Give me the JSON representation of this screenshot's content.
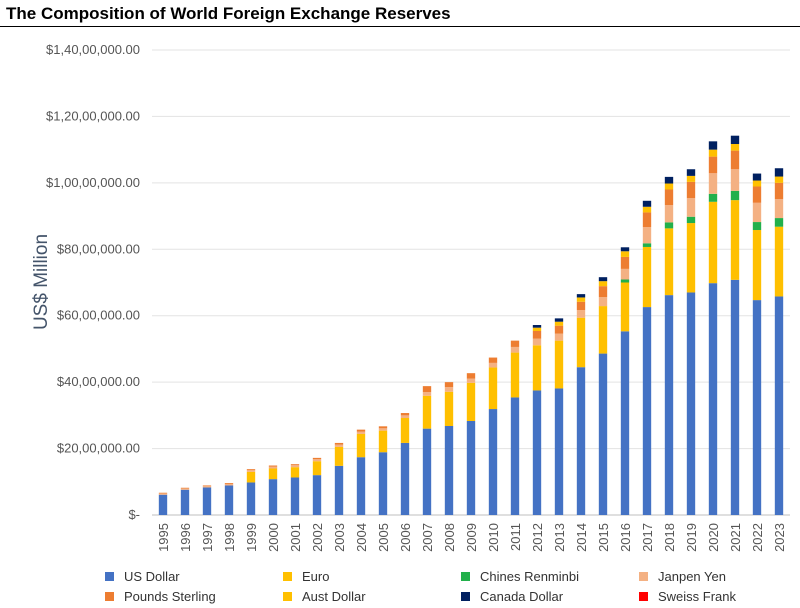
{
  "title": "The Composition of World Foreign Exchange Reserves",
  "chart_data": {
    "type": "bar",
    "stacked": true,
    "title": "The Composition of World Foreign Exchange Reserves",
    "xlabel": "",
    "ylabel": "US$ Million",
    "ylim": [
      0,
      14000000
    ],
    "ytick_values": [
      0,
      2000000,
      4000000,
      6000000,
      8000000,
      10000000,
      12000000,
      14000000
    ],
    "ytick_labels": [
      "$-",
      "$20,00,000.00",
      "$40,00,000.00",
      "$60,00,000.00",
      "$80,00,000.00",
      "$1,00,00,000.00",
      "$1,20,00,000.00",
      "$1,40,00,000.00"
    ],
    "grid": true,
    "legend_position": "bottom",
    "categories": [
      "1995",
      "1996",
      "1997",
      "1998",
      "1999",
      "2000",
      "2001",
      "2002",
      "2003",
      "2004",
      "2005",
      "2006",
      "2007",
      "2008",
      "2009",
      "2010",
      "2011",
      "2012",
      "2013",
      "2014",
      "2015",
      "2016",
      "2017",
      "2018",
      "2019",
      "2020",
      "2021",
      "2022",
      "2023"
    ],
    "series": [
      {
        "name": "US Dollar",
        "color": "#4472C4",
        "values": [
          610000,
          760000,
          830000,
          890000,
          980000,
          1080000,
          1130000,
          1200000,
          1480000,
          1740000,
          1890000,
          2170000,
          2600000,
          2680000,
          2830000,
          3190000,
          3540000,
          3750000,
          3810000,
          4450000,
          4860000,
          5530000,
          6260000,
          6620000,
          6700000,
          6980000,
          7080000,
          6470000,
          6580000
        ]
      },
      {
        "name": "Euro",
        "color": "#FFC000",
        "values": [
          0,
          0,
          0,
          0,
          320000,
          320000,
          310000,
          420000,
          570000,
          700000,
          650000,
          750000,
          990000,
          1030000,
          1150000,
          1250000,
          1350000,
          1360000,
          1440000,
          1490000,
          1430000,
          1470000,
          1810000,
          2010000,
          2090000,
          2450000,
          2400000,
          2110000,
          2100000
        ]
      },
      {
        "name": "Chines Renminbi",
        "color": "#22B04B",
        "values": [
          0,
          0,
          0,
          0,
          0,
          0,
          0,
          0,
          0,
          0,
          0,
          0,
          0,
          0,
          0,
          0,
          0,
          0,
          0,
          0,
          0,
          90000,
          110000,
          180000,
          190000,
          240000,
          280000,
          240000,
          260000
        ]
      },
      {
        "name": "Janpen Yen",
        "color": "#F4B183",
        "values": [
          40000,
          40000,
          40000,
          40000,
          50000,
          60000,
          60000,
          60000,
          70000,
          70000,
          70000,
          80000,
          110000,
          140000,
          130000,
          140000,
          170000,
          200000,
          210000,
          230000,
          270000,
          320000,
          490000,
          520000,
          560000,
          620000,
          650000,
          580000,
          570000
        ]
      },
      {
        "name": "Pounds Sterling",
        "color": "#ED7D31",
        "values": [
          20000,
          20000,
          20000,
          30000,
          30000,
          30000,
          30000,
          40000,
          50000,
          60000,
          60000,
          70000,
          180000,
          150000,
          160000,
          160000,
          190000,
          230000,
          240000,
          250000,
          330000,
          360000,
          440000,
          470000,
          490000,
          500000,
          560000,
          490000,
          490000
        ]
      },
      {
        "name": "Aust Dollar",
        "color": "#FFC000",
        "values": [
          0,
          0,
          0,
          0,
          0,
          0,
          0,
          0,
          0,
          0,
          0,
          0,
          0,
          0,
          0,
          0,
          0,
          100000,
          120000,
          130000,
          150000,
          170000,
          170000,
          180000,
          180000,
          210000,
          200000,
          180000,
          190000
        ]
      },
      {
        "name": "Canada Dollar",
        "color": "#002060",
        "values": [
          0,
          0,
          0,
          0,
          0,
          0,
          0,
          0,
          0,
          0,
          0,
          0,
          0,
          0,
          0,
          0,
          0,
          80000,
          100000,
          100000,
          120000,
          120000,
          180000,
          200000,
          200000,
          250000,
          250000,
          210000,
          250000
        ]
      },
      {
        "name": "Sweiss Frank",
        "color": "#FF0000",
        "values": [
          0,
          0,
          0,
          0,
          0,
          0,
          0,
          0,
          0,
          0,
          0,
          0,
          0,
          0,
          0,
          0,
          0,
          0,
          0,
          0,
          0,
          0,
          0,
          0,
          0,
          0,
          0,
          0,
          0
        ]
      }
    ]
  }
}
